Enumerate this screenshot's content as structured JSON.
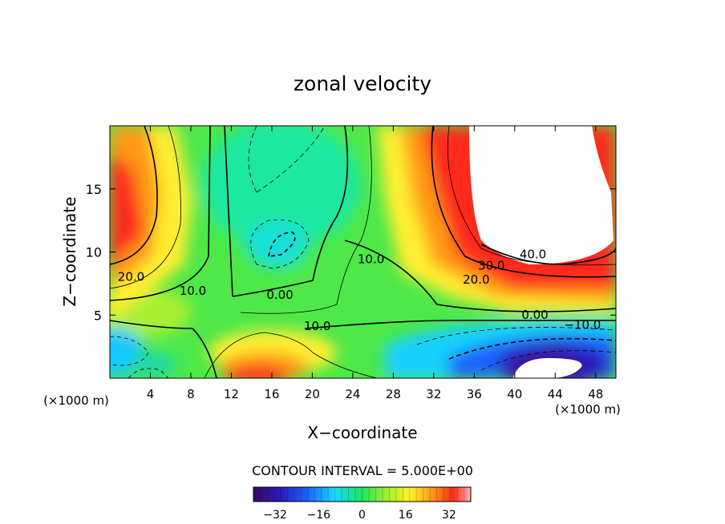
{
  "chart_data": {
    "type": "heatmap",
    "title": "zonal velocity",
    "xlabel": "X−coordinate",
    "ylabel": "Z−coordinate",
    "x_unit": "(×1000 m)",
    "z_unit": "(×1000 m)",
    "xlim": [
      0,
      50
    ],
    "ylim": [
      0,
      20
    ],
    "x_ticks": [
      4,
      8,
      12,
      16,
      20,
      24,
      28,
      32,
      36,
      40,
      44,
      48
    ],
    "x_tick_labels": [
      "4",
      "8",
      "12",
      "16",
      "20",
      "24",
      "28",
      "32",
      "36",
      "40",
      "44",
      "48"
    ],
    "y_ticks": [
      5,
      10,
      15
    ],
    "y_tick_labels": [
      "5",
      "10",
      "15"
    ],
    "contour_interval_text": "CONTOUR INTERVAL = 5.000E+00",
    "contour_labels": [
      {
        "text": "20.0",
        "x": 2.1,
        "z": 7.7
      },
      {
        "text": "10.0",
        "x": 8.2,
        "z": 6.6
      },
      {
        "text": "0.00",
        "x": 16.8,
        "z": 6.3
      },
      {
        "text": "10.0",
        "x": 20.5,
        "z": 3.8
      },
      {
        "text": "10.0",
        "x": 25.8,
        "z": 9.1
      },
      {
        "text": "40.0",
        "x": 41.8,
        "z": 9.5
      },
      {
        "text": "30.0",
        "x": 37.7,
        "z": 8.6
      },
      {
        "text": "20.0",
        "x": 36.2,
        "z": 7.5
      },
      {
        "text": "0.00",
        "x": 42.0,
        "z": 4.7
      },
      {
        "text": "−10.0",
        "x": 46.7,
        "z": 3.9
      }
    ],
    "colorbar": {
      "min": -40,
      "max": 40,
      "ticks": [
        -32,
        -16,
        0,
        16,
        32
      ],
      "tick_labels": [
        "−32",
        "−16",
        "0",
        "16",
        "32"
      ]
    },
    "grid": false,
    "legend": "bottom-center colorbar"
  }
}
